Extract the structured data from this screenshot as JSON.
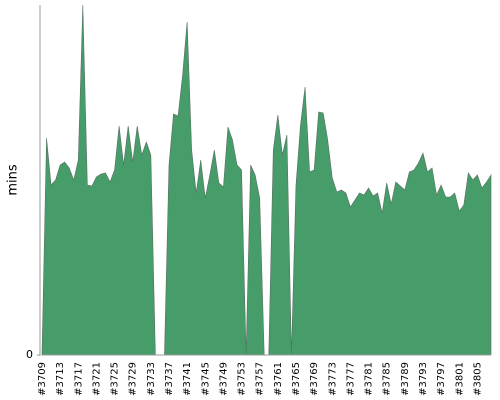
{
  "chart_data": {
    "type": "area",
    "ylabel": "mins",
    "color": "#469d6a",
    "categories": [
      "#3709",
      null,
      null,
      null,
      "#3713",
      null,
      null,
      null,
      "#3717",
      null,
      null,
      null,
      "#3721",
      null,
      null,
      null,
      "#3725",
      null,
      null,
      null,
      "#3729",
      null,
      null,
      null,
      "#3733",
      null,
      null,
      null,
      "#3737",
      null,
      null,
      null,
      "#3741",
      null,
      null,
      null,
      "#3745",
      null,
      null,
      null,
      "#3749",
      null,
      null,
      null,
      "#3753",
      null,
      null,
      null,
      "#3757",
      null,
      null,
      null,
      "#3761",
      null,
      null,
      null,
      "#3765",
      null,
      null,
      null,
      "#3769",
      null,
      null,
      null,
      "#3773",
      null,
      null,
      null,
      "#3777",
      null,
      null,
      null,
      "#3781",
      null,
      null,
      null,
      "#3785",
      null,
      null,
      null,
      "#3789",
      null,
      null,
      null,
      "#3793",
      null,
      null,
      null,
      "#3797",
      null,
      null,
      null,
      "#3801",
      null,
      null,
      null,
      "#3805",
      null,
      null,
      null
    ],
    "values": [
      0,
      21.7,
      17.0,
      17.5,
      19.0,
      19.3,
      18.7,
      17.5,
      19.5,
      35,
      17.0,
      16.9,
      17.8,
      18.1,
      18.2,
      17.3,
      18.5,
      22.9,
      19.0,
      22.9,
      19.3,
      22.9,
      20.0,
      21.3,
      20.0,
      0,
      0,
      0,
      19.0,
      24.1,
      23.9,
      28.0,
      33.3,
      20.5,
      16.2,
      19.5,
      15.7,
      18.0,
      20.5,
      17.2,
      16.8,
      22.8,
      21.5,
      19.0,
      18.5,
      0,
      19.0,
      18.0,
      15.7,
      0,
      0,
      20.5,
      24.0,
      20.0,
      22.0,
      0,
      17.0,
      23.0,
      26.8,
      18.3,
      18.5,
      24.3,
      24.2,
      21.5,
      17.7,
      16.3,
      16.5,
      16.2,
      14.8,
      15.5,
      16.2,
      16.0,
      16.7,
      15.9,
      16.2,
      14.2,
      17.2,
      15.1,
      17.3,
      16.9,
      16.5,
      18.3,
      18.5,
      19.2,
      20.2,
      18.3,
      18.7,
      16.0,
      17.0,
      15.8,
      15.8,
      16.2,
      14.4,
      15.0,
      18.2,
      17.5,
      18.0,
      16.7,
      17.3,
      18.0
    ],
    "ylim": [
      0,
      35
    ],
    "yticks": [
      0
    ]
  }
}
